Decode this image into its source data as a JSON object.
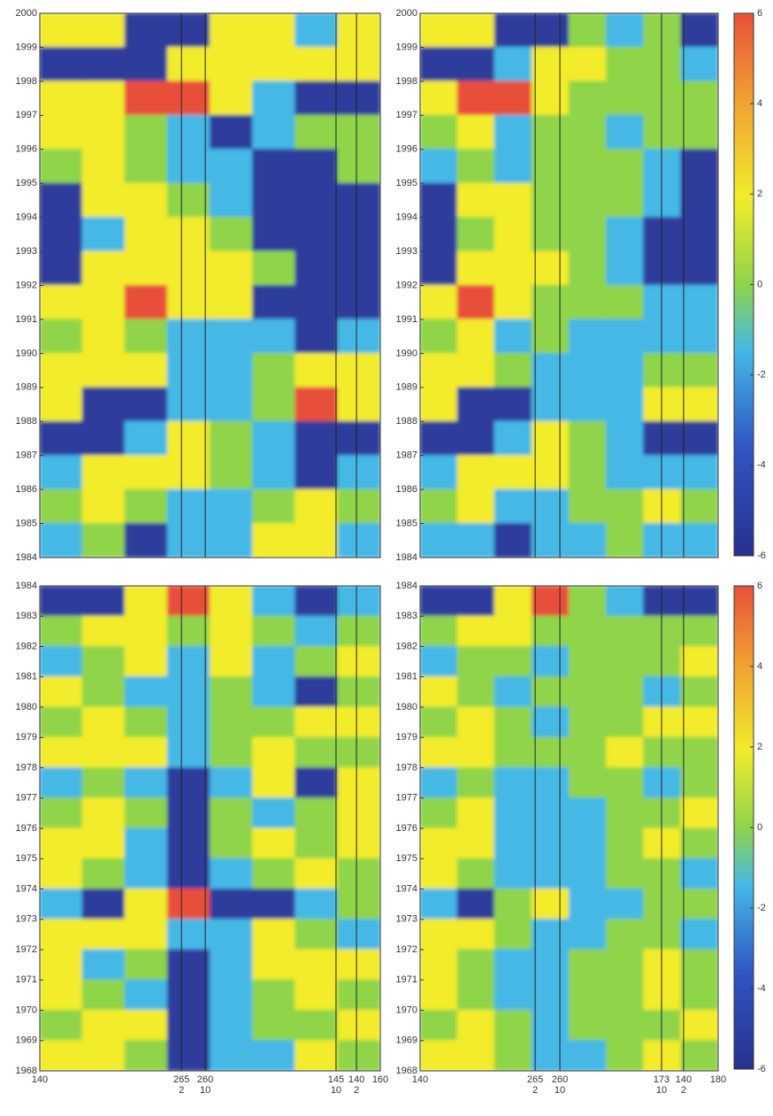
{
  "chart_data": [
    {
      "type": "heatmap",
      "ylim": [
        1984,
        2000
      ],
      "yticks": [
        2000,
        1999,
        1998,
        1997,
        1996,
        1995,
        1994,
        1993,
        1992,
        1991,
        1990,
        1989,
        1988,
        1987,
        1986,
        1985,
        1984
      ],
      "values": [
        [
          2,
          1,
          -3,
          -3,
          2,
          2,
          -1,
          2
        ],
        [
          -4,
          -4,
          -3,
          1,
          2,
          3,
          2,
          2
        ],
        [
          2,
          3,
          5,
          5,
          3,
          -1,
          -3,
          -4
        ],
        [
          1,
          2,
          0,
          -2,
          -3,
          -1,
          0,
          0
        ],
        [
          0,
          1,
          0,
          -1,
          -2,
          -3,
          -3,
          0
        ],
        [
          -3,
          2,
          2,
          0,
          -1,
          -3,
          -4,
          -4
        ],
        [
          -4,
          -1,
          1,
          2,
          0,
          -3,
          -4,
          -4
        ],
        [
          -4,
          1,
          2,
          2,
          3,
          0,
          -3,
          -4
        ],
        [
          1,
          3,
          4,
          2,
          1,
          -3,
          -3,
          -3
        ],
        [
          0,
          1,
          0,
          -1,
          -2,
          -1,
          -3,
          -2
        ],
        [
          1,
          2,
          1,
          -1,
          -2,
          0,
          1,
          1
        ],
        [
          2,
          -3,
          -4,
          -2,
          -1,
          0,
          4,
          2
        ],
        [
          -4,
          -3,
          -1,
          1,
          0,
          -2,
          -4,
          -4
        ],
        [
          -2,
          3,
          3,
          1,
          0,
          -1,
          -3,
          -2
        ],
        [
          0,
          1,
          0,
          -2,
          -1,
          0,
          1,
          0
        ],
        [
          -1,
          0,
          -3,
          -2,
          -1,
          1,
          2,
          -1
        ]
      ]
    },
    {
      "type": "heatmap",
      "ylim": [
        1984,
        2000
      ],
      "yticks": [
        2000,
        1999,
        1998,
        1997,
        1996,
        1995,
        1994,
        1993,
        1992,
        1991,
        1990,
        1989,
        1988,
        1987,
        1986,
        1985,
        1984
      ],
      "values": [
        [
          2,
          1,
          -3,
          -3,
          0,
          -1,
          0,
          -3
        ],
        [
          -4,
          -4,
          -1,
          2,
          1,
          0,
          0,
          -1
        ],
        [
          2,
          4,
          5,
          1,
          0,
          0,
          0,
          0
        ],
        [
          0,
          1,
          -2,
          0,
          0,
          -1,
          0,
          0
        ],
        [
          -1,
          0,
          -2,
          0,
          0,
          0,
          -1,
          -3
        ],
        [
          -3,
          1,
          1,
          0,
          0,
          0,
          -2,
          -3
        ],
        [
          -4,
          0,
          1,
          0,
          0,
          -1,
          -3,
          -3
        ],
        [
          -3,
          1,
          2,
          1,
          0,
          -1,
          -3,
          -4
        ],
        [
          2,
          4,
          2,
          0,
          0,
          0,
          -1,
          -1
        ],
        [
          0,
          1,
          -1,
          0,
          -1,
          -1,
          -2,
          -1
        ],
        [
          1,
          2,
          0,
          -1,
          -1,
          -1,
          0,
          0
        ],
        [
          2,
          -3,
          -3,
          -1,
          -2,
          -1,
          1,
          1
        ],
        [
          -4,
          -3,
          -1,
          1,
          0,
          -1,
          -4,
          -3
        ],
        [
          -2,
          3,
          3,
          1,
          0,
          -1,
          -1,
          -1
        ],
        [
          0,
          1,
          -1,
          -1,
          0,
          0,
          1,
          0
        ],
        [
          -1,
          -1,
          -3,
          -2,
          -1,
          0,
          -1,
          -2
        ]
      ],
      "zlim": [
        -6,
        6
      ],
      "colorbar_ticks": [
        6,
        4,
        2,
        0,
        -2,
        -4,
        -6
      ]
    },
    {
      "type": "heatmap",
      "ylim": [
        1968,
        1984
      ],
      "yticks": [
        1984,
        1983,
        1982,
        1981,
        1980,
        1979,
        1978,
        1977,
        1976,
        1975,
        1974,
        1973,
        1972,
        1971,
        1970,
        1969,
        1968
      ],
      "values": [
        [
          -4,
          -3,
          2,
          4,
          2,
          -2,
          -3,
          -2
        ],
        [
          0,
          2,
          1,
          0,
          1,
          0,
          -1,
          0
        ],
        [
          -1,
          0,
          1,
          -2,
          1,
          -1,
          0,
          1
        ],
        [
          1,
          0,
          -1,
          -1,
          0,
          -2,
          -3,
          0
        ],
        [
          0,
          1,
          0,
          -2,
          0,
          0,
          1,
          1
        ],
        [
          1,
          2,
          1,
          -1,
          0,
          1,
          0,
          0
        ],
        [
          -1,
          0,
          -2,
          -3,
          -1,
          1,
          -3,
          1
        ],
        [
          0,
          1,
          0,
          -3,
          0,
          -2,
          0,
          2
        ],
        [
          2,
          1,
          -2,
          -3,
          0,
          1,
          0,
          1
        ],
        [
          1,
          0,
          -1,
          -3,
          -1,
          0,
          1,
          0
        ],
        [
          -1,
          -3,
          2,
          4,
          -3,
          -3,
          -1,
          0
        ],
        [
          2,
          1,
          2,
          -2,
          -1,
          1,
          0,
          -1
        ],
        [
          2,
          -1,
          0,
          -3,
          -2,
          1,
          2,
          1
        ],
        [
          1,
          0,
          -1,
          -3,
          -1,
          0,
          2,
          0
        ],
        [
          0,
          1,
          1,
          -3,
          -1,
          0,
          0,
          1
        ],
        [
          1,
          2,
          0,
          -3,
          -2,
          -1,
          1,
          0
        ]
      ],
      "xlabels": [
        [
          "140"
        ],
        [
          "265",
          "2"
        ],
        [
          "260",
          "10"
        ],
        [
          "145",
          "10"
        ],
        [
          "140",
          "2"
        ],
        [
          "160"
        ]
      ]
    },
    {
      "type": "heatmap",
      "ylim": [
        1968,
        1984
      ],
      "yticks": [
        1984,
        1983,
        1982,
        1981,
        1980,
        1979,
        1978,
        1977,
        1976,
        1975,
        1974,
        1973,
        1972,
        1971,
        1970,
        1969,
        1968
      ],
      "values": [
        [
          -4,
          -3,
          1,
          4,
          0,
          -2,
          -3,
          -3
        ],
        [
          0,
          1,
          1,
          0,
          0,
          0,
          0,
          0
        ],
        [
          -1,
          0,
          0,
          -1,
          0,
          0,
          0,
          1
        ],
        [
          1,
          0,
          -1,
          0,
          0,
          0,
          -1,
          0
        ],
        [
          0,
          1,
          0,
          -1,
          0,
          0,
          1,
          1
        ],
        [
          1,
          2,
          0,
          0,
          0,
          1,
          0,
          0
        ],
        [
          -1,
          0,
          -2,
          -1,
          0,
          0,
          -1,
          0
        ],
        [
          0,
          1,
          -1,
          -1,
          -1,
          0,
          0,
          1
        ],
        [
          1,
          1,
          -2,
          -1,
          -1,
          0,
          1,
          0
        ],
        [
          1,
          0,
          -1,
          -1,
          -1,
          0,
          0,
          -1
        ],
        [
          -1,
          -3,
          0,
          1,
          -1,
          -1,
          0,
          0
        ],
        [
          2,
          1,
          0,
          -1,
          -1,
          0,
          0,
          -1
        ],
        [
          2,
          0,
          -1,
          -1,
          0,
          0,
          1,
          0
        ],
        [
          1,
          0,
          -1,
          -1,
          0,
          0,
          1,
          0
        ],
        [
          0,
          1,
          0,
          -1,
          0,
          0,
          0,
          1
        ],
        [
          1,
          1,
          0,
          -2,
          -1,
          0,
          1,
          0
        ]
      ],
      "xlabels": [
        [
          "140"
        ],
        [
          "265",
          "2"
        ],
        [
          "260",
          "10"
        ],
        [
          "173",
          "10"
        ],
        [
          "140",
          "2"
        ],
        [
          "180"
        ]
      ],
      "zlim": [
        -6,
        6
      ],
      "colorbar_ticks": [
        6,
        4,
        2,
        0,
        -2,
        -4,
        -6
      ]
    }
  ]
}
